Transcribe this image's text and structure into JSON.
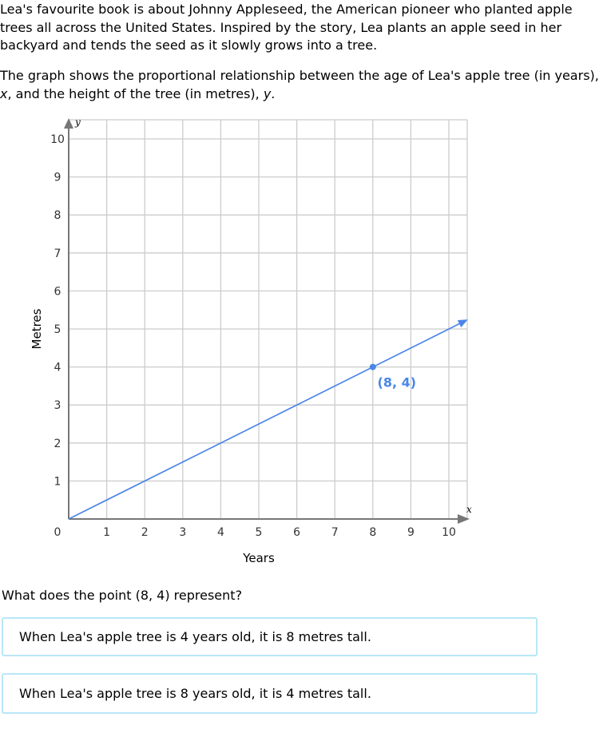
{
  "intro": {
    "p1": "Lea's favourite book is about Johnny Appleseed, the American pioneer who planted apple trees all across the United States. Inspired by the story, Lea plants an apple seed in her backyard and tends the seed as it slowly grows into a tree.",
    "p2_a": "The graph shows the proportional relationship between the age of Lea's apple tree (in years), ",
    "p2_x": "x",
    "p2_b": ", and the height of the tree (in metres), ",
    "p2_y": "y",
    "p2_c": "."
  },
  "chart_data": {
    "type": "line",
    "xlabel": "Years",
    "ylabel": "Metres",
    "x_var": "x",
    "y_var": "y",
    "xlim": [
      0,
      10
    ],
    "ylim": [
      0,
      10
    ],
    "x_ticks": [
      "0",
      "1",
      "2",
      "3",
      "4",
      "5",
      "6",
      "7",
      "8",
      "9",
      "10"
    ],
    "y_ticks": [
      "1",
      "2",
      "3",
      "4",
      "5",
      "6",
      "7",
      "8",
      "9",
      "10"
    ],
    "grid": true,
    "series": [
      {
        "x": [
          0,
          10.5
        ],
        "y": [
          0,
          5.25
        ],
        "color": "#4a86e8",
        "arrow_end": true
      }
    ],
    "highlight_point": {
      "x": 8,
      "y": 4,
      "label": "(8, 4)",
      "color": "#4a86e8"
    },
    "colors": {
      "grid": "#cccccc",
      "axis": "#777777",
      "line": "#4a86e8"
    }
  },
  "question": "What does the point (8, 4) represent?",
  "choices": [
    {
      "label": "When Lea's apple tree is 4 years old, it is 8 metres tall."
    },
    {
      "label": "When Lea's apple tree is 8 years old, it is 4 metres tall."
    }
  ]
}
